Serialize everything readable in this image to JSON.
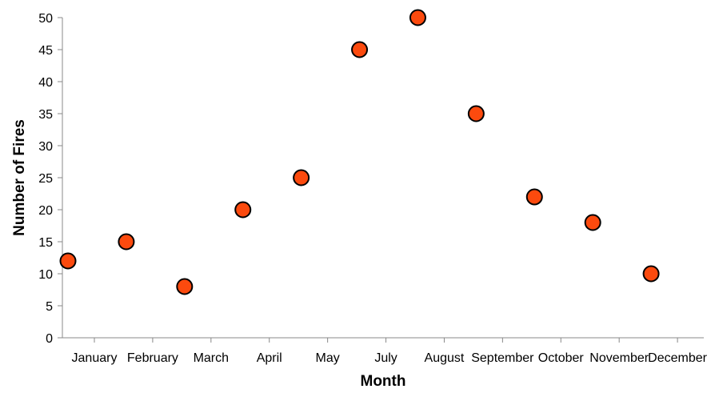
{
  "chart_data": {
    "type": "scatter",
    "x_categories": [
      "January",
      "February",
      "March",
      "April",
      "May",
      "July",
      "August",
      "September",
      "October",
      "November",
      "December"
    ],
    "points": [
      {
        "x": "January",
        "y": 12
      },
      {
        "x": "February",
        "y": 15
      },
      {
        "x": "March",
        "y": 8
      },
      {
        "x": "April",
        "y": 20
      },
      {
        "x": "May",
        "y": 25
      },
      {
        "x": "July",
        "y": 45
      },
      {
        "x": "August",
        "y": 50
      },
      {
        "x": "September",
        "y": 35
      },
      {
        "x": "October",
        "y": 22
      },
      {
        "x": "November",
        "y": 18
      },
      {
        "x": "December",
        "y": 10
      }
    ],
    "y_ticks": [
      0,
      5,
      10,
      15,
      20,
      25,
      30,
      35,
      40,
      45,
      50
    ],
    "xlabel": "Month",
    "ylabel": "Number of Fires",
    "ylim": [
      0,
      50
    ],
    "grid": false,
    "point_color": "#fc4a0e",
    "point_stroke": "#000000"
  }
}
